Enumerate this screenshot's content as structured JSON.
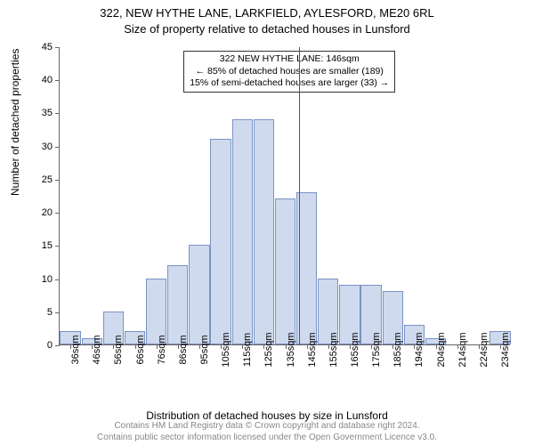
{
  "title": "322, NEW HYTHE LANE, LARKFIELD, AYLESFORD, ME20 6RL",
  "subtitle": "Size of property relative to detached houses in Lunsford",
  "ylabel": "Number of detached properties",
  "xlabel": "Distribution of detached houses by size in Lunsford",
  "footer_line1": "Contains HM Land Registry data © Crown copyright and database right 2024.",
  "footer_line2": "Contains public sector information licensed under the Open Government Licence v3.0.",
  "chart": {
    "type": "histogram",
    "ylim": [
      0,
      45
    ],
    "ytick_step": 5,
    "bar_fill": "#cfdaee",
    "bar_stroke": "#7a93c4",
    "ref_line_color": "#cc2222",
    "ref_line_x_index": 11,
    "background": "#ffffff",
    "categories": [
      "36sqm",
      "46sqm",
      "56sqm",
      "66sqm",
      "76sqm",
      "86sqm",
      "95sqm",
      "105sqm",
      "115sqm",
      "125sqm",
      "135sqm",
      "145sqm",
      "155sqm",
      "165sqm",
      "175sqm",
      "185sqm",
      "194sqm",
      "204sqm",
      "214sqm",
      "224sqm",
      "234sqm"
    ],
    "values": [
      2,
      1,
      5,
      2,
      10,
      12,
      15,
      31,
      34,
      34,
      22,
      23,
      10,
      9,
      9,
      8,
      3,
      1,
      0,
      0,
      2
    ],
    "bar_width_ratio": 0.96
  },
  "annotation": {
    "line1": "322 NEW HYTHE LANE: 146sqm",
    "line2": "← 85% of detached houses are smaller (189)",
    "line3": "15% of semi-detached houses are larger (33) →"
  }
}
